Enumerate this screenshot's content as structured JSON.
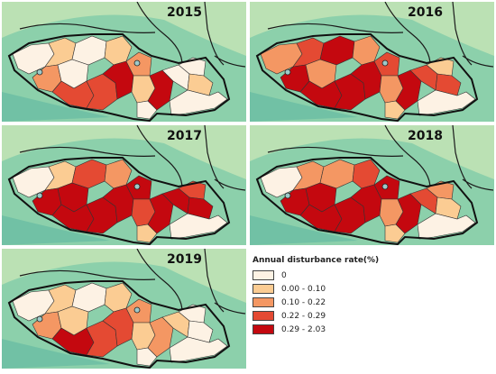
{
  "legend": {
    "title": "Annual disturbance rate(%)",
    "classes": [
      {
        "label": "0",
        "color": "#fdf2e4"
      },
      {
        "label": "0.00 - 0.10",
        "color": "#fbcc93"
      },
      {
        "label": "0.10 - 0.22",
        "color": "#f49763"
      },
      {
        "label": "0.22 - 0.29",
        "color": "#e44a33"
      },
      {
        "label": "0.29 - 2.03",
        "color": "#c4080f"
      }
    ]
  },
  "panels": [
    {
      "year": "2015",
      "fills": [
        0,
        1,
        2,
        0,
        0,
        1,
        3,
        3,
        4,
        2,
        1,
        0,
        4,
        0,
        0,
        1,
        0
      ]
    },
    {
      "year": "2016",
      "fills": [
        2,
        3,
        4,
        4,
        2,
        2,
        4,
        4,
        4,
        3,
        2,
        1,
        4,
        3,
        1,
        3,
        0
      ]
    },
    {
      "year": "2017",
      "fills": [
        0,
        1,
        4,
        3,
        4,
        2,
        4,
        4,
        4,
        4,
        3,
        1,
        4,
        4,
        3,
        4,
        0
      ]
    },
    {
      "year": "2018",
      "fills": [
        0,
        2,
        4,
        2,
        4,
        3,
        4,
        4,
        4,
        4,
        2,
        1,
        4,
        3,
        2,
        1,
        0
      ]
    },
    {
      "year": "2019",
      "fills": [
        0,
        1,
        2,
        0,
        1,
        1,
        4,
        3,
        3,
        2,
        1,
        0,
        2,
        1,
        0,
        0,
        0
      ]
    }
  ]
}
